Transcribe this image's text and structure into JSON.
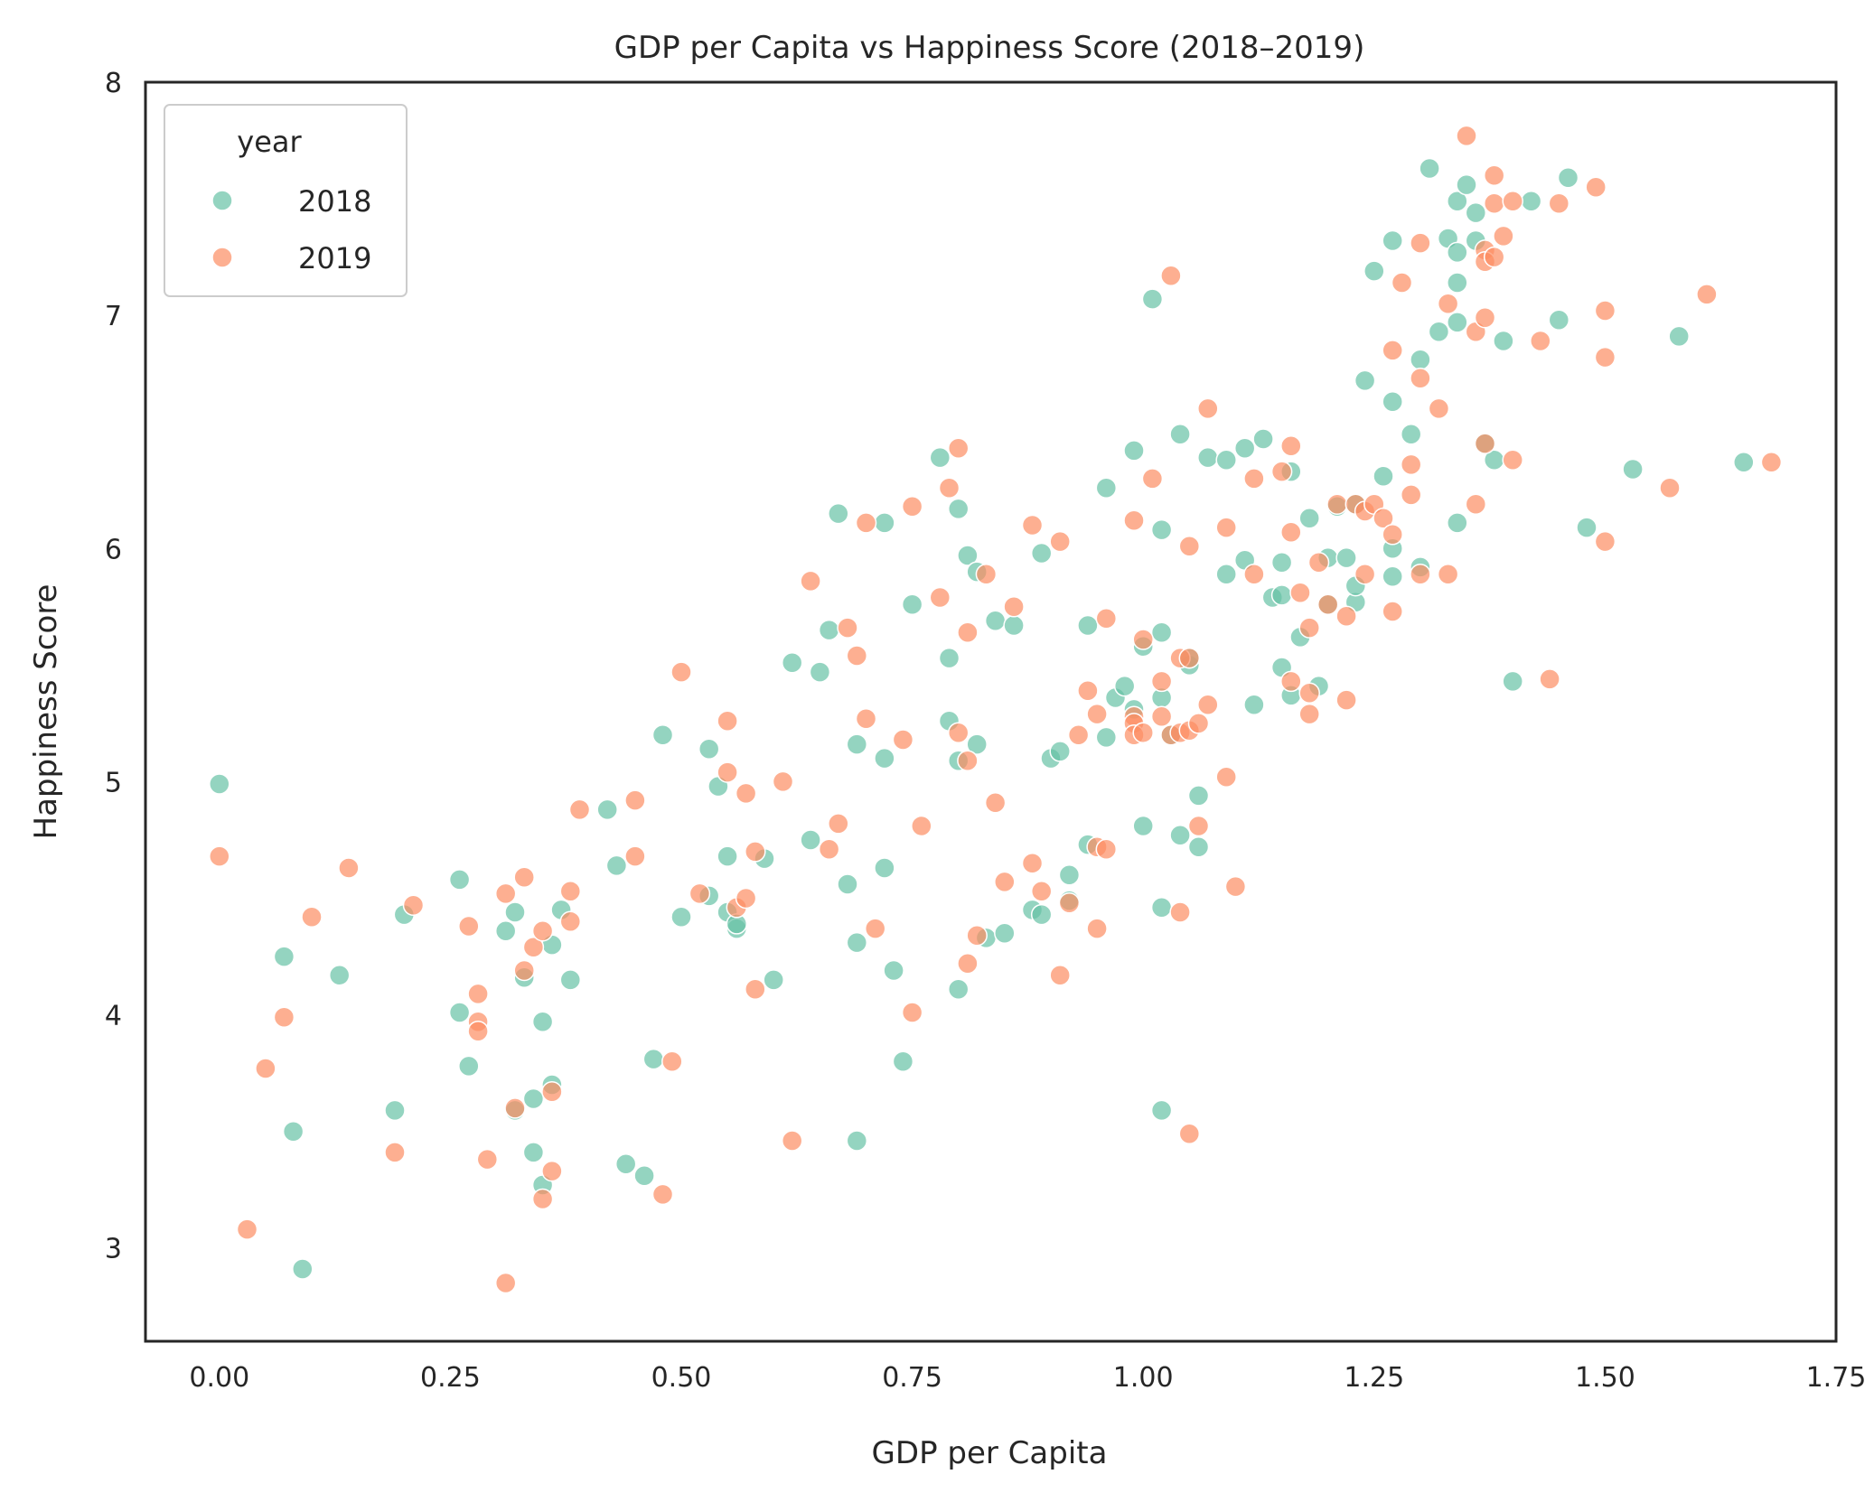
{
  "chart_data": {
    "type": "scatter",
    "title": "GDP per Capita vs Happiness Score (2018–2019)",
    "xlabel": "GDP per Capita",
    "ylabel": "Happiness Score",
    "xlim": [
      -0.08,
      1.75
    ],
    "ylim": [
      2.6,
      8.0
    ],
    "xticks": [
      "0.00",
      "0.25",
      "0.50",
      "0.75",
      "1.00",
      "1.25",
      "1.50",
      "1.75"
    ],
    "yticks": [
      "3",
      "4",
      "5",
      "6",
      "7",
      "8"
    ],
    "grid": false,
    "legend": {
      "title": "year",
      "placement": "upper-left"
    },
    "series": [
      {
        "name": "2018",
        "color": "#66c2a5",
        "points": [
          [
            0.0,
            4.99
          ],
          [
            0.07,
            4.25
          ],
          [
            0.08,
            3.5
          ],
          [
            0.09,
            2.91
          ],
          [
            0.13,
            4.17
          ],
          [
            0.19,
            3.59
          ],
          [
            0.2,
            4.43
          ],
          [
            0.26,
            4.58
          ],
          [
            0.26,
            4.01
          ],
          [
            0.27,
            3.78
          ],
          [
            0.31,
            4.36
          ],
          [
            0.32,
            4.44
          ],
          [
            0.32,
            3.59
          ],
          [
            0.33,
            4.16
          ],
          [
            0.34,
            3.64
          ],
          [
            0.34,
            3.41
          ],
          [
            0.35,
            3.27
          ],
          [
            0.35,
            3.97
          ],
          [
            0.36,
            3.7
          ],
          [
            0.36,
            4.3
          ],
          [
            0.37,
            4.45
          ],
          [
            0.38,
            4.15
          ],
          [
            0.42,
            4.88
          ],
          [
            0.43,
            4.64
          ],
          [
            0.44,
            3.36
          ],
          [
            0.46,
            3.31
          ],
          [
            0.47,
            3.81
          ],
          [
            0.48,
            5.2
          ],
          [
            0.5,
            4.42
          ],
          [
            0.53,
            5.14
          ],
          [
            0.53,
            4.51
          ],
          [
            0.54,
            4.98
          ],
          [
            0.55,
            4.68
          ],
          [
            0.55,
            4.44
          ],
          [
            0.56,
            4.37
          ],
          [
            0.56,
            4.39
          ],
          [
            0.59,
            4.67
          ],
          [
            0.6,
            4.15
          ],
          [
            0.62,
            5.51
          ],
          [
            0.64,
            4.75
          ],
          [
            0.65,
            5.47
          ],
          [
            0.66,
            5.65
          ],
          [
            0.67,
            6.15
          ],
          [
            0.68,
            4.56
          ],
          [
            0.69,
            4.31
          ],
          [
            0.69,
            5.16
          ],
          [
            0.69,
            3.46
          ],
          [
            0.72,
            5.1
          ],
          [
            0.72,
            6.11
          ],
          [
            0.72,
            4.63
          ],
          [
            0.73,
            4.19
          ],
          [
            0.74,
            3.8
          ],
          [
            0.75,
            5.76
          ],
          [
            0.78,
            6.39
          ],
          [
            0.79,
            5.53
          ],
          [
            0.79,
            5.26
          ],
          [
            0.8,
            4.11
          ],
          [
            0.8,
            5.09
          ],
          [
            0.8,
            6.17
          ],
          [
            0.81,
            5.97
          ],
          [
            0.82,
            5.9
          ],
          [
            0.82,
            5.16
          ],
          [
            0.83,
            4.33
          ],
          [
            0.84,
            5.69
          ],
          [
            0.85,
            4.35
          ],
          [
            0.86,
            5.67
          ],
          [
            0.88,
            4.45
          ],
          [
            0.89,
            4.43
          ],
          [
            0.89,
            5.98
          ],
          [
            0.9,
            5.1
          ],
          [
            0.91,
            5.13
          ],
          [
            0.92,
            4.6
          ],
          [
            0.92,
            4.49
          ],
          [
            0.94,
            5.67
          ],
          [
            0.94,
            4.73
          ],
          [
            0.96,
            6.26
          ],
          [
            0.96,
            5.19
          ],
          [
            0.97,
            5.36
          ],
          [
            0.98,
            5.41
          ],
          [
            0.99,
            5.31
          ],
          [
            0.99,
            6.42
          ],
          [
            1.0,
            5.58
          ],
          [
            1.0,
            4.81
          ],
          [
            1.01,
            7.07
          ],
          [
            1.02,
            5.64
          ],
          [
            1.02,
            5.36
          ],
          [
            1.02,
            6.08
          ],
          [
            1.02,
            4.46
          ],
          [
            1.02,
            3.59
          ],
          [
            1.03,
            5.2
          ],
          [
            1.04,
            4.77
          ],
          [
            1.04,
            6.49
          ],
          [
            1.05,
            5.5
          ],
          [
            1.05,
            5.53
          ],
          [
            1.06,
            4.94
          ],
          [
            1.06,
            4.72
          ],
          [
            1.07,
            6.39
          ],
          [
            1.09,
            6.38
          ],
          [
            1.09,
            5.89
          ],
          [
            1.11,
            6.43
          ],
          [
            1.11,
            5.95
          ],
          [
            1.12,
            5.33
          ],
          [
            1.13,
            6.47
          ],
          [
            1.14,
            5.79
          ],
          [
            1.15,
            5.94
          ],
          [
            1.15,
            5.49
          ],
          [
            1.15,
            5.8
          ],
          [
            1.16,
            5.37
          ],
          [
            1.16,
            6.33
          ],
          [
            1.17,
            5.62
          ],
          [
            1.18,
            6.13
          ],
          [
            1.19,
            5.41
          ],
          [
            1.2,
            5.96
          ],
          [
            1.2,
            5.76
          ],
          [
            1.21,
            6.18
          ],
          [
            1.22,
            5.96
          ],
          [
            1.23,
            6.19
          ],
          [
            1.23,
            5.77
          ],
          [
            1.23,
            5.84
          ],
          [
            1.24,
            6.72
          ],
          [
            1.25,
            7.19
          ],
          [
            1.26,
            6.31
          ],
          [
            1.27,
            6.0
          ],
          [
            1.27,
            5.88
          ],
          [
            1.27,
            7.32
          ],
          [
            1.27,
            6.63
          ],
          [
            1.29,
            6.49
          ],
          [
            1.3,
            5.92
          ],
          [
            1.3,
            6.81
          ],
          [
            1.31,
            7.63
          ],
          [
            1.32,
            6.93
          ],
          [
            1.33,
            7.33
          ],
          [
            1.34,
            7.27
          ],
          [
            1.34,
            7.14
          ],
          [
            1.34,
            6.97
          ],
          [
            1.34,
            7.49
          ],
          [
            1.34,
            6.11
          ],
          [
            1.35,
            7.56
          ],
          [
            1.36,
            7.32
          ],
          [
            1.36,
            7.44
          ],
          [
            1.37,
            6.45
          ],
          [
            1.38,
            6.38
          ],
          [
            1.39,
            6.89
          ],
          [
            1.4,
            5.43
          ],
          [
            1.42,
            7.49
          ],
          [
            1.45,
            6.98
          ],
          [
            1.46,
            7.59
          ],
          [
            1.48,
            6.09
          ],
          [
            1.53,
            6.34
          ],
          [
            1.58,
            6.91
          ],
          [
            1.65,
            6.37
          ]
        ]
      },
      {
        "name": "2019",
        "color": "#fc8d62",
        "points": [
          [
            0.0,
            4.68
          ],
          [
            0.03,
            3.08
          ],
          [
            0.05,
            3.77
          ],
          [
            0.07,
            3.99
          ],
          [
            0.1,
            4.42
          ],
          [
            0.14,
            4.63
          ],
          [
            0.19,
            3.41
          ],
          [
            0.21,
            4.47
          ],
          [
            0.27,
            4.38
          ],
          [
            0.28,
            4.09
          ],
          [
            0.28,
            3.97
          ],
          [
            0.28,
            3.93
          ],
          [
            0.29,
            3.38
          ],
          [
            0.31,
            4.52
          ],
          [
            0.31,
            2.85
          ],
          [
            0.32,
            3.6
          ],
          [
            0.33,
            4.59
          ],
          [
            0.33,
            4.19
          ],
          [
            0.34,
            4.29
          ],
          [
            0.35,
            3.21
          ],
          [
            0.35,
            4.36
          ],
          [
            0.36,
            3.33
          ],
          [
            0.36,
            3.67
          ],
          [
            0.38,
            4.53
          ],
          [
            0.38,
            4.4
          ],
          [
            0.39,
            4.88
          ],
          [
            0.45,
            4.92
          ],
          [
            0.45,
            4.68
          ],
          [
            0.48,
            3.23
          ],
          [
            0.49,
            3.8
          ],
          [
            0.5,
            5.47
          ],
          [
            0.52,
            4.52
          ],
          [
            0.55,
            5.26
          ],
          [
            0.55,
            5.04
          ],
          [
            0.56,
            4.46
          ],
          [
            0.57,
            4.95
          ],
          [
            0.57,
            4.5
          ],
          [
            0.58,
            4.7
          ],
          [
            0.58,
            4.11
          ],
          [
            0.61,
            5.0
          ],
          [
            0.62,
            3.46
          ],
          [
            0.64,
            5.86
          ],
          [
            0.66,
            4.71
          ],
          [
            0.67,
            4.82
          ],
          [
            0.68,
            5.66
          ],
          [
            0.69,
            5.54
          ],
          [
            0.7,
            6.11
          ],
          [
            0.7,
            5.27
          ],
          [
            0.71,
            4.37
          ],
          [
            0.74,
            5.18
          ],
          [
            0.75,
            6.18
          ],
          [
            0.75,
            4.01
          ],
          [
            0.76,
            4.81
          ],
          [
            0.78,
            5.79
          ],
          [
            0.79,
            6.26
          ],
          [
            0.8,
            6.43
          ],
          [
            0.8,
            5.21
          ],
          [
            0.81,
            5.64
          ],
          [
            0.81,
            5.09
          ],
          [
            0.81,
            4.22
          ],
          [
            0.82,
            4.34
          ],
          [
            0.83,
            5.89
          ],
          [
            0.84,
            4.91
          ],
          [
            0.85,
            4.57
          ],
          [
            0.86,
            5.75
          ],
          [
            0.88,
            4.65
          ],
          [
            0.88,
            6.1
          ],
          [
            0.89,
            4.53
          ],
          [
            0.91,
            6.03
          ],
          [
            0.91,
            4.17
          ],
          [
            0.92,
            4.48
          ],
          [
            0.93,
            5.2
          ],
          [
            0.94,
            5.39
          ],
          [
            0.95,
            5.29
          ],
          [
            0.95,
            4.72
          ],
          [
            0.95,
            4.37
          ],
          [
            0.96,
            5.7
          ],
          [
            0.96,
            4.71
          ],
          [
            0.99,
            6.12
          ],
          [
            0.99,
            5.28
          ],
          [
            0.99,
            5.25
          ],
          [
            0.99,
            5.2
          ],
          [
            1.0,
            5.61
          ],
          [
            1.0,
            5.21
          ],
          [
            1.01,
            6.3
          ],
          [
            1.02,
            5.43
          ],
          [
            1.02,
            5.28
          ],
          [
            1.03,
            5.2
          ],
          [
            1.03,
            7.17
          ],
          [
            1.04,
            5.21
          ],
          [
            1.04,
            5.53
          ],
          [
            1.04,
            4.44
          ],
          [
            1.05,
            5.22
          ],
          [
            1.05,
            6.01
          ],
          [
            1.05,
            3.49
          ],
          [
            1.05,
            5.53
          ],
          [
            1.06,
            5.25
          ],
          [
            1.06,
            4.81
          ],
          [
            1.07,
            6.6
          ],
          [
            1.07,
            5.33
          ],
          [
            1.09,
            5.02
          ],
          [
            1.09,
            6.09
          ],
          [
            1.1,
            4.55
          ],
          [
            1.12,
            5.89
          ],
          [
            1.12,
            6.3
          ],
          [
            1.15,
            6.33
          ],
          [
            1.16,
            6.44
          ],
          [
            1.16,
            5.43
          ],
          [
            1.16,
            6.07
          ],
          [
            1.17,
            5.81
          ],
          [
            1.18,
            5.29
          ],
          [
            1.18,
            5.38
          ],
          [
            1.18,
            5.66
          ],
          [
            1.19,
            5.94
          ],
          [
            1.2,
            5.76
          ],
          [
            1.21,
            6.19
          ],
          [
            1.22,
            5.71
          ],
          [
            1.22,
            5.35
          ],
          [
            1.23,
            6.19
          ],
          [
            1.24,
            5.89
          ],
          [
            1.24,
            6.16
          ],
          [
            1.25,
            6.19
          ],
          [
            1.26,
            6.13
          ],
          [
            1.27,
            6.06
          ],
          [
            1.27,
            5.73
          ],
          [
            1.27,
            6.85
          ],
          [
            1.28,
            7.14
          ],
          [
            1.29,
            6.36
          ],
          [
            1.29,
            6.23
          ],
          [
            1.3,
            5.89
          ],
          [
            1.3,
            6.73
          ],
          [
            1.3,
            7.31
          ],
          [
            1.32,
            6.6
          ],
          [
            1.33,
            5.89
          ],
          [
            1.33,
            7.05
          ],
          [
            1.35,
            7.77
          ],
          [
            1.36,
            6.93
          ],
          [
            1.36,
            6.19
          ],
          [
            1.37,
            7.28
          ],
          [
            1.37,
            6.45
          ],
          [
            1.37,
            7.23
          ],
          [
            1.37,
            6.99
          ],
          [
            1.38,
            7.25
          ],
          [
            1.38,
            7.48
          ],
          [
            1.38,
            7.6
          ],
          [
            1.39,
            7.34
          ],
          [
            1.4,
            7.49
          ],
          [
            1.4,
            6.38
          ],
          [
            1.43,
            6.89
          ],
          [
            1.44,
            5.44
          ],
          [
            1.45,
            7.48
          ],
          [
            1.49,
            7.55
          ],
          [
            1.5,
            7.02
          ],
          [
            1.5,
            6.82
          ],
          [
            1.5,
            6.03
          ],
          [
            1.57,
            6.26
          ],
          [
            1.61,
            7.09
          ],
          [
            1.68,
            6.37
          ]
        ]
      }
    ]
  }
}
